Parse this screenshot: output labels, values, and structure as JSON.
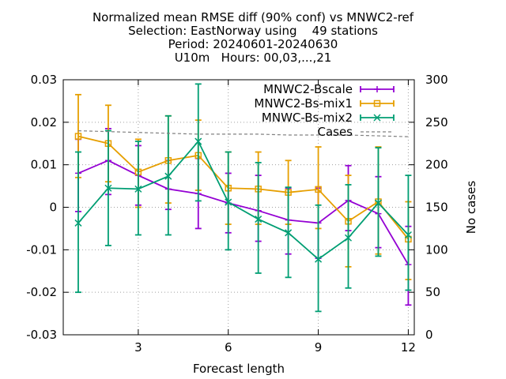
{
  "title_lines": [
    "Normalized mean RMSE diff (90% conf) vs MNWC2-ref",
    "Selection: EastNorway using    49 stations",
    "Period: 20240601-20240630",
    "U10m   Hours: 00,03,...,21"
  ],
  "chart_data": {
    "type": "line",
    "xlabel": "Forecast length",
    "ylabel": "",
    "y2label": "No cases",
    "xlim": [
      0.5,
      12.2
    ],
    "ylim": [
      -0.03,
      0.03
    ],
    "y2lim": [
      0,
      300
    ],
    "xticks": [
      3,
      6,
      9,
      12
    ],
    "yticks": [
      -0.03,
      -0.02,
      -0.01,
      0,
      0.01,
      0.02,
      0.03
    ],
    "ytick_labels": [
      "-0.03",
      "-0.02",
      "-0.01",
      "0",
      "0.01",
      "0.02",
      "0.03"
    ],
    "y2ticks": [
      0,
      50,
      100,
      150,
      200,
      250,
      300
    ],
    "grid": true,
    "legend_position": "top-right",
    "x": [
      1,
      2,
      3,
      4,
      5,
      6,
      7,
      8,
      9,
      10,
      11,
      12
    ],
    "series": [
      {
        "name": "MNWC2-Bscale",
        "color": "#9400d3",
        "marker": "plus",
        "values": [
          0.008,
          0.011,
          0.0075,
          0.0043,
          0.0032,
          0.001,
          -0.0008,
          -0.003,
          -0.0037,
          0.0016,
          -0.0015,
          -0.0135
        ],
        "lower": [
          -0.001,
          0.003,
          0.0005,
          -0.0005,
          -0.005,
          -0.006,
          -0.008,
          -0.011,
          -0.012,
          -0.0055,
          -0.0095,
          -0.023
        ],
        "upper": [
          0.016,
          0.0185,
          0.0145,
          0.011,
          0.0115,
          0.008,
          0.0075,
          0.0045,
          0.0045,
          0.0098,
          0.0072,
          -0.0045
        ]
      },
      {
        "name": "MNWC2-Bs-mix1",
        "color": "#e69f00",
        "marker": "square",
        "values": [
          0.0167,
          0.015,
          0.0083,
          0.011,
          0.0122,
          0.0045,
          0.0043,
          0.0035,
          0.0042,
          -0.0033,
          0.0013,
          -0.0075
        ],
        "lower": [
          0.007,
          0.006,
          0.0,
          0.001,
          0.004,
          -0.004,
          -0.004,
          -0.004,
          -0.005,
          -0.014,
          -0.011,
          -0.017
        ],
        "upper": [
          0.0265,
          0.024,
          0.016,
          0.0215,
          0.0205,
          0.013,
          0.013,
          0.011,
          0.0142,
          0.0075,
          0.0142,
          0.0013
        ]
      },
      {
        "name": "MNWC-Bs-mix2",
        "color": "#009e73",
        "marker": "x",
        "values": [
          -0.0037,
          0.0045,
          0.0043,
          0.0073,
          0.0155,
          0.0012,
          -0.0028,
          -0.006,
          -0.0122,
          -0.0072,
          0.001,
          -0.0065
        ],
        "lower": [
          -0.02,
          -0.009,
          -0.0065,
          -0.0065,
          0.0015,
          -0.01,
          -0.0155,
          -0.0165,
          -0.0245,
          -0.019,
          -0.0115,
          -0.0195
        ],
        "upper": [
          0.013,
          0.018,
          0.0155,
          0.0215,
          0.029,
          0.013,
          0.0105,
          0.0047,
          0.0005,
          0.0053,
          0.014,
          0.0075
        ]
      },
      {
        "name": "Cases",
        "color": "#808080",
        "dashed": true,
        "axis": "y2",
        "x": [
          1,
          3,
          4,
          5,
          6,
          7,
          8,
          9,
          10,
          11,
          12
        ],
        "values": [
          240,
          238,
          237,
          236,
          236,
          236,
          235,
          235,
          235,
          234,
          233
        ]
      }
    ]
  }
}
